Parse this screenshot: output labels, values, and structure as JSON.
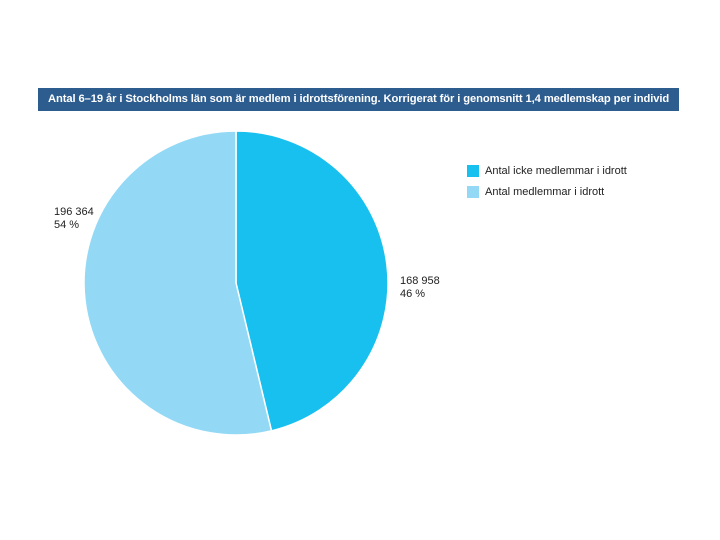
{
  "chart_data": {
    "type": "pie",
    "title": "Antal 6–19 år i Stockholms län som är medlem i idrottsförening. Korrigerat för i genomsnitt 1,4 medlemskap per individ",
    "slices": [
      {
        "name": "Antal icke medlemmar i idrott",
        "value": 168958,
        "value_label": "168 958",
        "percent_label": "46 %",
        "color": "#17c0ee"
      },
      {
        "name": "Antal medlemmar i idrott",
        "value": 196364,
        "value_label": "196 364",
        "percent_label": "54 %",
        "color": "#93d9f6"
      }
    ],
    "legend_position": "top-right",
    "title_background": "#2d5c8f"
  }
}
